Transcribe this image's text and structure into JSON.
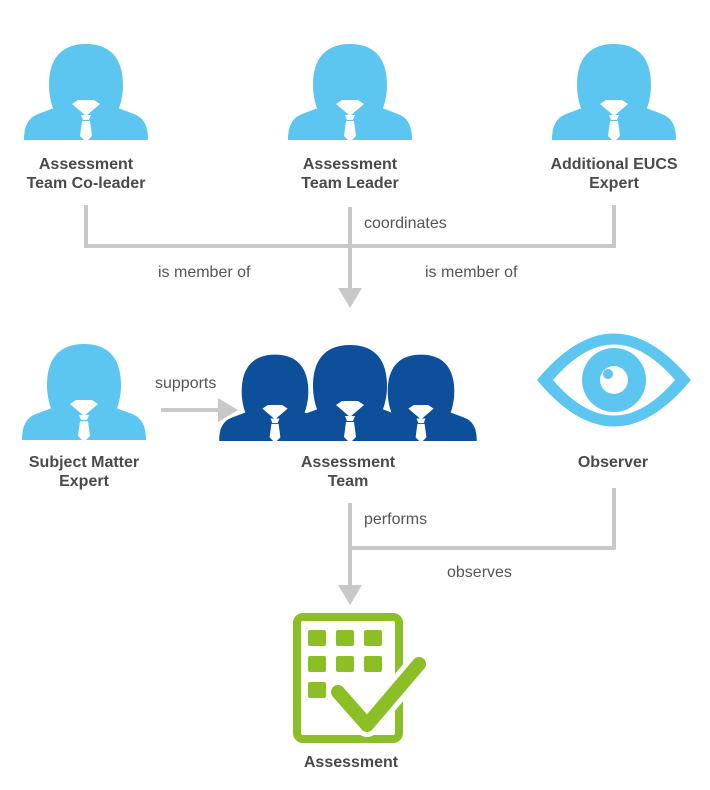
{
  "colors": {
    "person": "#5cc5f0",
    "team": "#0e4f9b",
    "eye": "#5cc5f0",
    "assessment": "#8cbf26",
    "connector": "#c8c8c8",
    "label": "#4a4a4a"
  },
  "nodes": {
    "co_leader": {
      "icon": "person-icon",
      "line1": "Assessment",
      "line2": "Team Co-leader"
    },
    "leader": {
      "icon": "person-icon",
      "line1": "Assessment",
      "line2": "Team Leader"
    },
    "eucs_expert": {
      "icon": "person-icon",
      "line1": "Additional EUCS",
      "line2": "Expert"
    },
    "sme": {
      "icon": "person-icon",
      "line1": "Subject Matter",
      "line2": "Expert"
    },
    "team": {
      "icon": "team-icon",
      "line1": "Assessment",
      "line2": "Team"
    },
    "observer": {
      "icon": "eye-icon",
      "line1": "Observer"
    },
    "assessment": {
      "icon": "checklist-icon",
      "line1": "Assessment"
    }
  },
  "edges": {
    "coordinates": "coordinates",
    "member_left": "is member of",
    "member_right": "is member of",
    "supports": "supports",
    "performs": "performs",
    "observes": "observes"
  }
}
